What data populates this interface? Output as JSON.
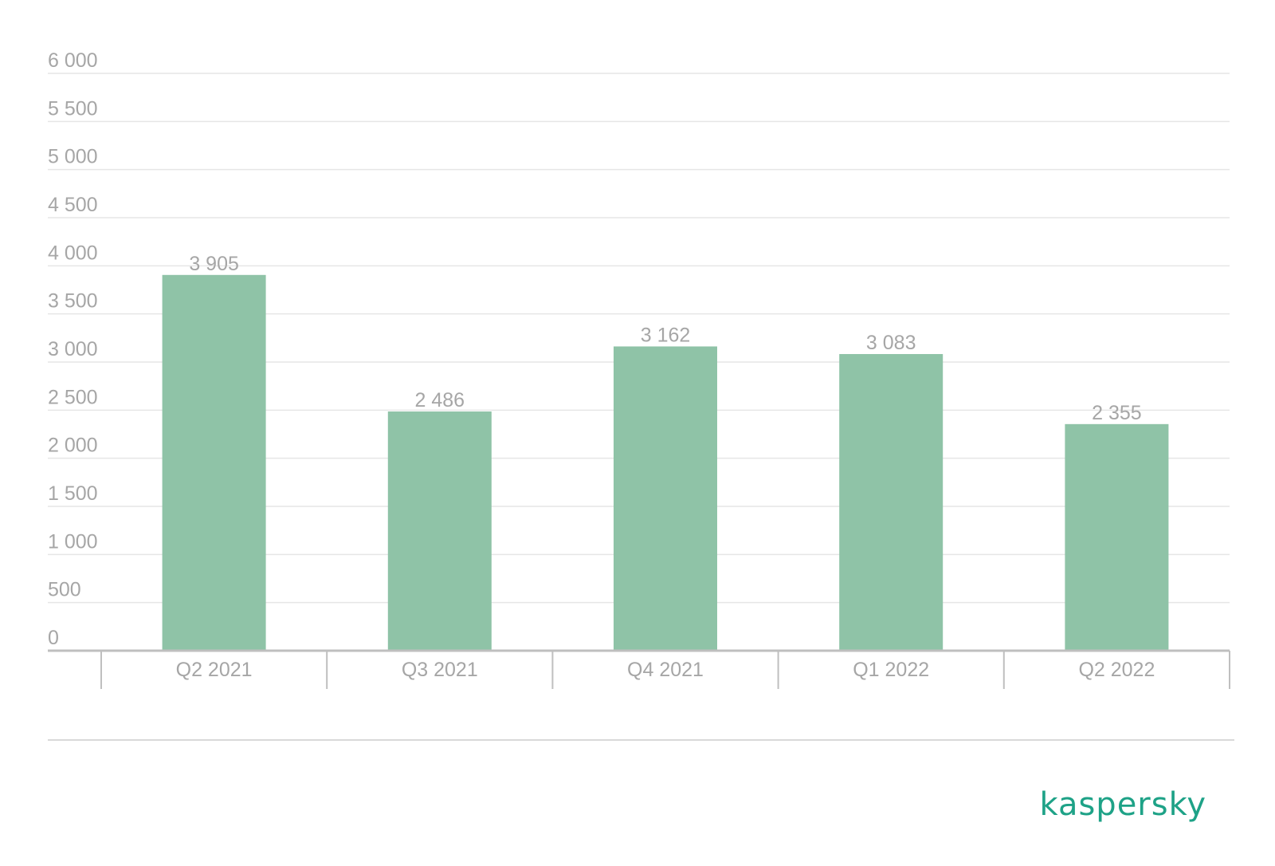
{
  "brand": {
    "name": "kaspersky",
    "color": "#1ea287"
  },
  "colors": {
    "bar": "#8fc3a7",
    "grid": "#e6e6e6",
    "axis": "#bfbfbf",
    "text": "#a6a6a6"
  },
  "chart_data": {
    "type": "bar",
    "title": "",
    "xlabel": "",
    "ylabel": "",
    "categories": [
      "Q2 2021",
      "Q3 2021",
      "Q4 2021",
      "Q1 2022",
      "Q2 2022"
    ],
    "values": [
      3905,
      2486,
      3162,
      3083,
      2355
    ],
    "value_labels": [
      "3 905",
      "2 486",
      "3 162",
      "3 083",
      "2 355"
    ],
    "ylim": [
      0,
      6000
    ],
    "y_ticks": [
      0,
      500,
      1000,
      1500,
      2000,
      2500,
      3000,
      3500,
      4000,
      4500,
      5000,
      5500,
      6000
    ],
    "y_tick_labels": [
      "0",
      "500",
      "1 000",
      "1 500",
      "2 000",
      "2 500",
      "3 000",
      "3 500",
      "4 000",
      "4 500",
      "5 000",
      "5 500",
      "6 000"
    ],
    "grid": true,
    "legend": "none"
  }
}
